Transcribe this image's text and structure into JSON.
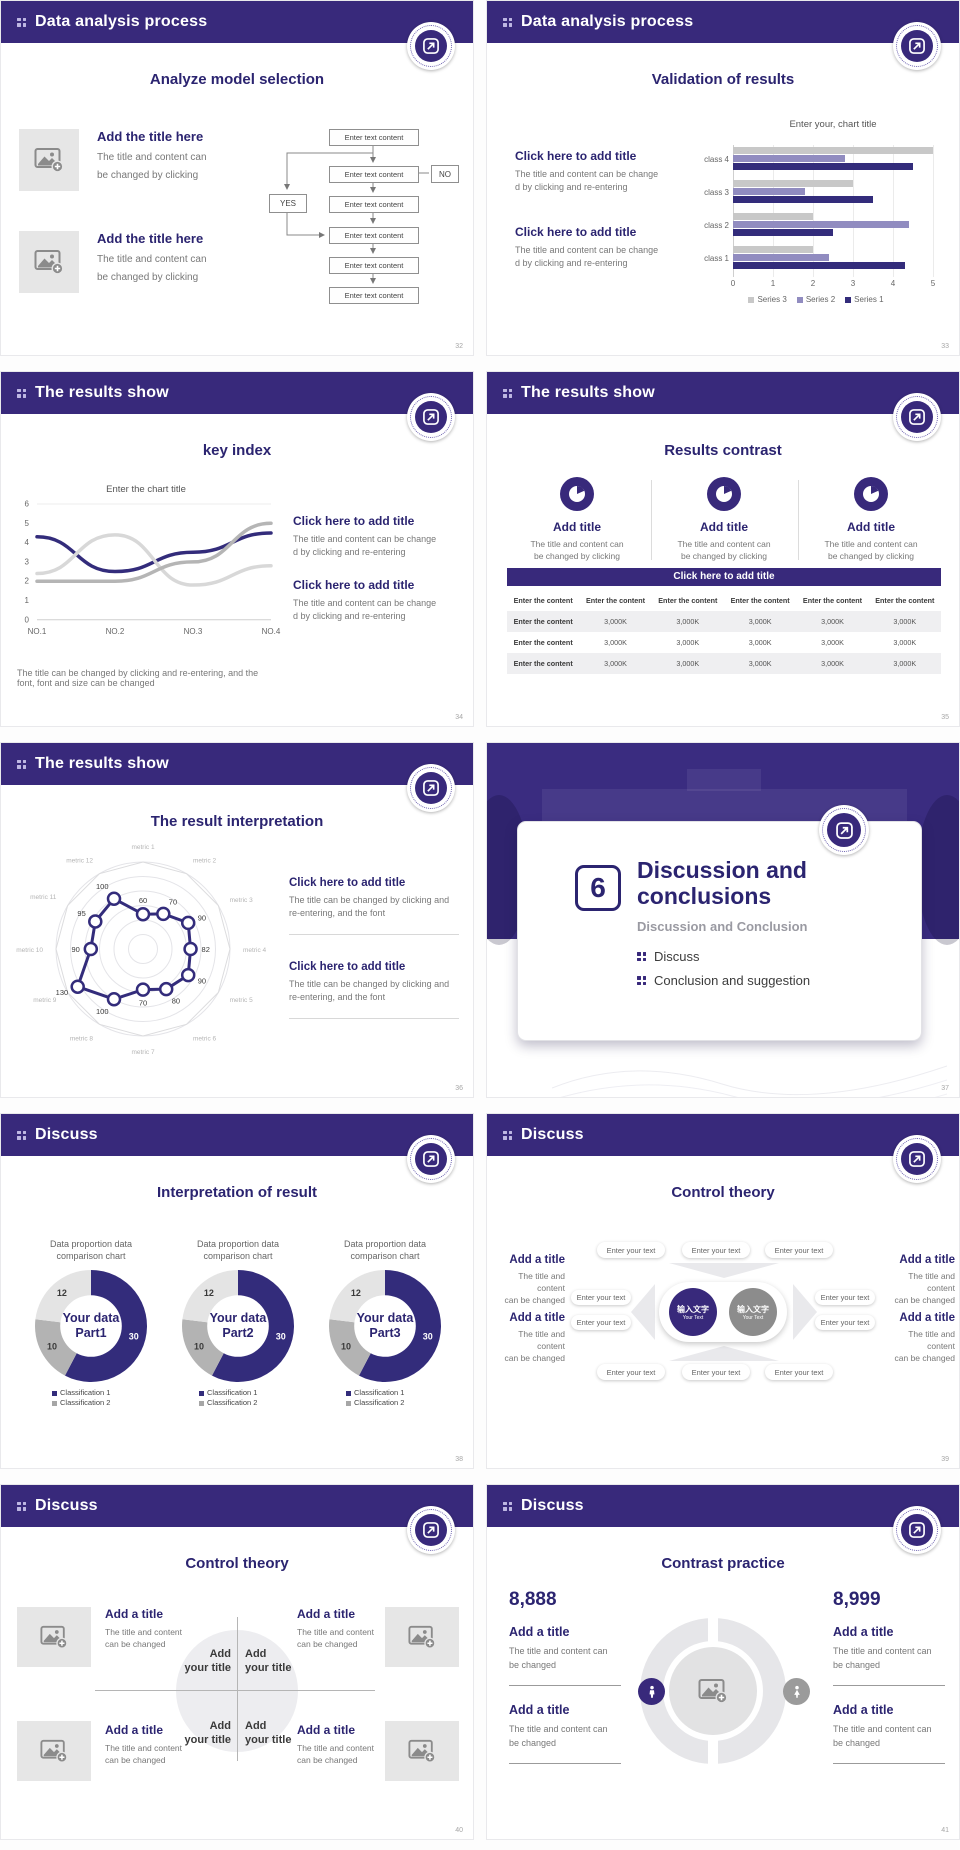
{
  "theme": {
    "header_purple": "#38297b",
    "accent_indigo": "#2b2470",
    "series_dark": "#332c7b",
    "series_light_purple": "#918cc0",
    "series_gray": "#c8c8c8",
    "table_shade": "#efeff1"
  },
  "slides": [
    {
      "page_number": "32",
      "header": "Data analysis process",
      "title": "Analyze model selection",
      "items": [
        {
          "heading": "Add the title here",
          "lines": [
            "The title and content can",
            "be changed by clicking"
          ]
        },
        {
          "heading": "Add the title here",
          "lines": [
            "The title and content can",
            "be changed by clicking"
          ]
        }
      ],
      "flowchart": {
        "box_label": "Enter text content",
        "yes_label": "YES",
        "no_label": "NO"
      }
    },
    {
      "page_number": "33",
      "header": "Data analysis process",
      "title": "Validation of results",
      "items": [
        {
          "heading": "Click here to add title",
          "lines": [
            "The title and content can be change",
            "d by clicking and re-entering"
          ]
        },
        {
          "heading": "Click here to add title",
          "lines": [
            "The title and content can be change",
            "d by clicking and re-entering"
          ]
        }
      ],
      "chart_data": {
        "type": "bar",
        "orientation": "horizontal",
        "title": "Enter your, chart title",
        "categories": [
          "class 1",
          "class 2",
          "class 3",
          "class 4"
        ],
        "series": [
          {
            "name": "Series 1",
            "color": "#332c7b",
            "values": [
              4.3,
              2.5,
              3.5,
              4.5
            ]
          },
          {
            "name": "Series 2",
            "color": "#918cc0",
            "values": [
              2.4,
              4.4,
              1.8,
              2.8
            ]
          },
          {
            "name": "Series 3",
            "color": "#c8c8c8",
            "values": [
              2.0,
              2.0,
              3.0,
              5.0
            ]
          }
        ],
        "xlim": [
          0,
          5
        ],
        "xticks": [
          0,
          1,
          2,
          3,
          4,
          5
        ],
        "legend_order": [
          "Series 3",
          "Series 2",
          "Series 1"
        ],
        "grid": true
      }
    },
    {
      "page_number": "34",
      "header": "The results show",
      "title": "key index",
      "chart_data": {
        "type": "line",
        "title": "Enter the chart title",
        "x_labels": [
          "NO.1",
          "NO.2",
          "NO.3",
          "NO.4"
        ],
        "ylim": [
          0,
          6
        ],
        "yticks": [
          0,
          1,
          2,
          3,
          4,
          5,
          6
        ],
        "series": [
          {
            "name": "Series 1",
            "color": "#332c7b",
            "values": [
              4.3,
              2.5,
              3.5,
              4.5
            ]
          },
          {
            "name": "Series 2",
            "color": "#d8d8d8",
            "values": [
              2.4,
              4.4,
              1.8,
              2.8
            ]
          },
          {
            "name": "Series 3",
            "color": "#b5b5b5",
            "values": [
              2.0,
              2.0,
              3.0,
              5.0
            ]
          }
        ]
      },
      "items": [
        {
          "heading": "Click here to add title",
          "lines": [
            "The title and content can be change",
            "d by clicking and re-entering"
          ]
        },
        {
          "heading": "Click here to add title",
          "lines": [
            "The title and content can be change",
            "d by clicking and re-entering"
          ]
        }
      ],
      "footnote_lines": [
        "The title can be changed by clicking and re-entering, and the",
        "font, font and size can be changed"
      ]
    },
    {
      "page_number": "35",
      "header": "The results show",
      "title": "Results contrast",
      "columns": [
        {
          "heading": "Add title",
          "lines": [
            "The title and content can",
            "be changed by clicking"
          ]
        },
        {
          "heading": "Add title",
          "lines": [
            "The title and content can",
            "be changed by clicking"
          ]
        },
        {
          "heading": "Add title",
          "lines": [
            "The title and content can",
            "be changed by clicking"
          ]
        }
      ],
      "banner": "Click here to add title",
      "table": {
        "header": [
          "Enter the content",
          "Enter the content",
          "Enter the content",
          "Enter the content",
          "Enter the content",
          "Enter the content"
        ],
        "rows": [
          [
            "Enter the content",
            "3,000K",
            "3,000K",
            "3,000K",
            "3,000K",
            "3,000K"
          ],
          [
            "Enter the content",
            "3,000K",
            "3,000K",
            "3,000K",
            "3,000K",
            "3,000K"
          ],
          [
            "Enter the content",
            "3,000K",
            "3,000K",
            "3,000K",
            "3,000K",
            "3,000K"
          ]
        ]
      }
    },
    {
      "page_number": "36",
      "header": "The results show",
      "title": "The result interpretation",
      "chart_data": {
        "type": "radar",
        "rmax": 150,
        "rings": 6,
        "color": "#332c7b",
        "axes": [
          "metric 1",
          "metric 2",
          "metric 3",
          "metric 4",
          "metric 5",
          "metric 6",
          "metric 7",
          "metric 8",
          "metric 9",
          "metric 10",
          "metric 11",
          "metric 12"
        ],
        "values": [
          60,
          70,
          90,
          82,
          90,
          80,
          70,
          100,
          130,
          90,
          95,
          100
        ]
      },
      "items": [
        {
          "heading": "Click here to add title",
          "lines": [
            "The title can be changed by clicking and",
            "re-entering, and the font"
          ]
        },
        {
          "heading": "Click here to add title",
          "lines": [
            "The title can be changed by clicking and",
            "re-entering, and the font"
          ]
        }
      ]
    },
    {
      "page_number": "37",
      "type": "divider",
      "number": "6",
      "heading_lines": [
        "Discussion and",
        "conclusions"
      ],
      "subheading": "Discussion and Conclusion",
      "bullets": [
        "Discuss",
        "Conclusion and suggestion"
      ]
    },
    {
      "page_number": "38",
      "header": "Discuss",
      "title": "Interpretation of result",
      "donut_title_lines": [
        "Data proportion data",
        "comparison chart"
      ],
      "legend": [
        {
          "label": "Classification 1",
          "color": "#332c7b"
        },
        {
          "label": "Classification 2",
          "color": "#a6a6a6"
        }
      ],
      "chart_data": [
        {
          "type": "pie",
          "hole": 0.55,
          "center_lines": [
            "Your data",
            "Part1"
          ],
          "slices": [
            {
              "name": "Classification 1",
              "value": 30,
              "color": "#332c7b",
              "label_color": "#ffffff"
            },
            {
              "name": "Classification 2",
              "value": 10,
              "color": "#b3b3b3",
              "label_color": "#3a3a3a"
            },
            {
              "name": "Classification 2",
              "value": 12,
              "color": "#e4e4e4",
              "label_color": "#3a3a3a"
            }
          ]
        },
        {
          "type": "pie",
          "hole": 0.55,
          "center_lines": [
            "Your data",
            "Part2"
          ],
          "slices": [
            {
              "name": "Classification 1",
              "value": 30,
              "color": "#332c7b",
              "label_color": "#ffffff"
            },
            {
              "name": "Classification 2",
              "value": 10,
              "color": "#b3b3b3",
              "label_color": "#3a3a3a"
            },
            {
              "name": "Classification 2",
              "value": 12,
              "color": "#e4e4e4",
              "label_color": "#3a3a3a"
            }
          ]
        },
        {
          "type": "pie",
          "hole": 0.55,
          "center_lines": [
            "Your data",
            "Part3"
          ],
          "slices": [
            {
              "name": "Classification 1",
              "value": 30,
              "color": "#332c7b",
              "label_color": "#ffffff"
            },
            {
              "name": "Classification 2",
              "value": 10,
              "color": "#b3b3b3",
              "label_color": "#3a3a3a"
            },
            {
              "name": "Classification 2",
              "value": 12,
              "color": "#e4e4e4",
              "label_color": "#3a3a3a"
            }
          ]
        }
      ]
    },
    {
      "page_number": "39",
      "header": "Discuss",
      "title": "Control theory",
      "pill_label": "Enter your text",
      "center_circles": [
        {
          "cn": "输入文字",
          "en": "Your Text",
          "color": "#38297b"
        },
        {
          "cn": "输入文字",
          "en": "Your Text",
          "color": "#8c8c8c"
        }
      ],
      "side_items": [
        {
          "heading": "Add a title",
          "lines": [
            "The title and content",
            "can be changed"
          ]
        },
        {
          "heading": "Add a title",
          "lines": [
            "The title and content",
            "can be changed"
          ]
        },
        {
          "heading": "Add a title",
          "lines": [
            "The title and content",
            "can be changed"
          ]
        },
        {
          "heading": "Add a title",
          "lines": [
            "The title and content",
            "can be changed"
          ]
        }
      ]
    },
    {
      "page_number": "40",
      "header": "Discuss",
      "title": "Control theory",
      "quadrant_label_lines": [
        "Add",
        "your title"
      ],
      "corner_items": [
        {
          "heading": "Add a title",
          "lines": [
            "The title and content",
            "can be changed"
          ]
        },
        {
          "heading": "Add a title",
          "lines": [
            "The title and content",
            "can be changed"
          ]
        },
        {
          "heading": "Add a title",
          "lines": [
            "The title and content",
            "can be changed"
          ]
        },
        {
          "heading": "Add a title",
          "lines": [
            "The title and content",
            "can be changed"
          ]
        }
      ]
    },
    {
      "page_number": "41",
      "header": "Discuss",
      "title": "Contrast practice",
      "left_number": "8,888",
      "right_number": "8,999",
      "left_items": [
        {
          "heading": "Add a title",
          "lines": [
            "The title and content can",
            "be changed"
          ]
        },
        {
          "heading": "Add a title",
          "lines": [
            "The title and content can",
            "be changed"
          ]
        }
      ],
      "right_items": [
        {
          "heading": "Add a title",
          "lines": [
            "The title and content can",
            "be changed"
          ]
        },
        {
          "heading": "Add a title",
          "lines": [
            "The title and content can",
            "be changed"
          ]
        }
      ]
    }
  ]
}
